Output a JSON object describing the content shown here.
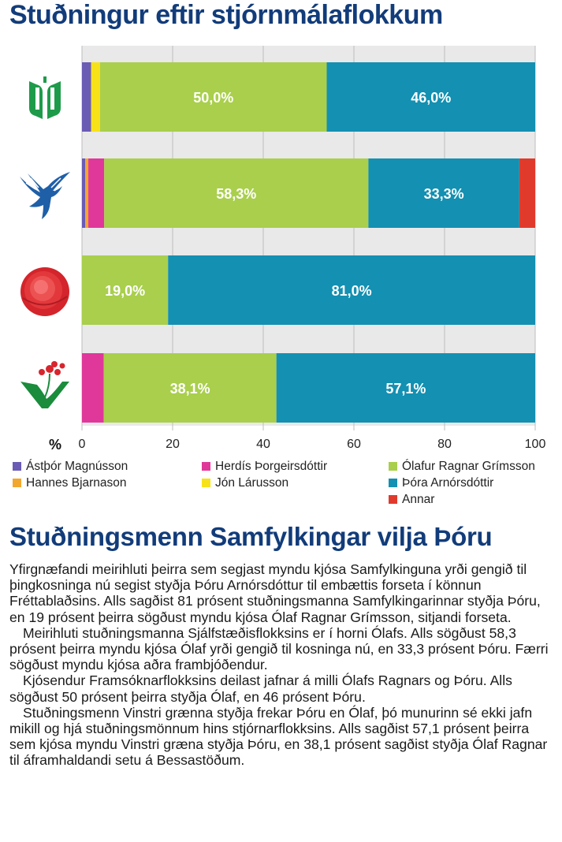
{
  "heading": "Stuðningur eftir stjórnmálaflokkum",
  "chart_data": {
    "type": "bar",
    "orientation": "horizontal-stacked",
    "xlim": [
      0,
      100
    ],
    "xticks": [
      "0",
      "20",
      "40",
      "60",
      "80",
      "100"
    ],
    "x_unit_label": "%",
    "row_icons": [
      "framsoknarflokkurinn-logo-icon",
      "sjalfstaedisflokkurinn-falcon-icon",
      "samfylkingin-rose-icon",
      "vinstri-graen-logo-icon"
    ],
    "segments": [
      {
        "name": "Ástþór Magnússon",
        "color": "#6a5bb5"
      },
      {
        "name": "Hannes Bjarnason",
        "color": "#f2a72e"
      },
      {
        "name": "Herdís Þorgeirsdóttir",
        "color": "#e0389a"
      },
      {
        "name": "Jón Lárusson",
        "color": "#f7e21a"
      },
      {
        "name": "Ólafur Ragnar Grímsson",
        "color": "#a9cf4c"
      },
      {
        "name": "Þóra Arnórsdóttir",
        "color": "#1390b2"
      },
      {
        "name": "Annar",
        "color": "#e03a2c"
      }
    ],
    "rows": [
      {
        "values": [
          2.0,
          0,
          0,
          2.0,
          50.0,
          46.0,
          0
        ],
        "labels": [
          "",
          "",
          "",
          "",
          "50,0%",
          "46,0%",
          ""
        ]
      },
      {
        "values": [
          0.7,
          0.7,
          3.5,
          0,
          58.3,
          33.3,
          3.5
        ],
        "labels": [
          "",
          "",
          "",
          "",
          "58,3%",
          "33,3%",
          ""
        ]
      },
      {
        "values": [
          0,
          0,
          0,
          0,
          19.0,
          81.0,
          0
        ],
        "labels": [
          "",
          "",
          "",
          "",
          "19,0%",
          "81,0%",
          ""
        ]
      },
      {
        "values": [
          0,
          0,
          4.8,
          0,
          38.1,
          57.1,
          0
        ],
        "labels": [
          "",
          "",
          "",
          "",
          "38,1%",
          "57,1%",
          ""
        ]
      }
    ]
  },
  "legend": [
    {
      "name": "Ástþór Magnússon",
      "color": "#6a5bb5"
    },
    {
      "name": "Hannes Bjarnason",
      "color": "#f2a72e"
    },
    {
      "name": "Herdís Þorgeirsdóttir",
      "color": "#e0389a"
    },
    {
      "name": "Jón Lárusson",
      "color": "#f7e21a"
    },
    {
      "name": "Ólafur Ragnar Grímsson",
      "color": "#a9cf4c"
    },
    {
      "name": "Þóra Arnórsdóttir",
      "color": "#1390b2"
    },
    {
      "name": "Annar",
      "color": "#e03a2c"
    }
  ],
  "article": {
    "headline": "Stuðningsmenn Samfylkingar vilja Þóru",
    "paragraphs": [
      "Yfirgnæfandi meirihluti þeirra sem segjast myndu kjósa Samfylkinguna yrði gengið til þingkosninga nú segist styðja Þóru Arnórsdóttur til embættis forseta í könnun Fréttablaðsins. Alls sagðist 81 prósent stuðningsmanna Samfylkingarinnar styðja Þóru, en 19 prósent þeirra sögðust myndu kjósa Ólaf Ragnar Grímsson, sitjandi forseta.",
      "Meirihluti stuðningsmanna Sjálfstæðisflokksins er í horni Ólafs. Alls sögðust 58,3 prósent þeirra myndu kjósa Ólaf yrði gengið til kosninga nú, en 33,3 prósent Þóru. Færri sögðust myndu kjósa aðra frambjóðendur.",
      "Kjósendur Framsóknarflokksins deilast jafnar á milli Ólafs Ragnars og Þóru. Alls sögðust 50 prósent þeirra styðja Ólaf, en 46 prósent Þóru.",
      "Stuðningsmenn Vinstri grænna styðja frekar Þóru en Ólaf, þó munurinn sé ekki jafn mikill og hjá stuðningsmönnum hins stjórnarflokksins. Alls sagðist 57,1 prósent þeirra sem kjósa myndu Vinstri græna styðja Þóru, en 38,1 prósent sagðist styðja Ólaf Ragnar til áframhaldandi setu á Bessastöðum."
    ]
  }
}
